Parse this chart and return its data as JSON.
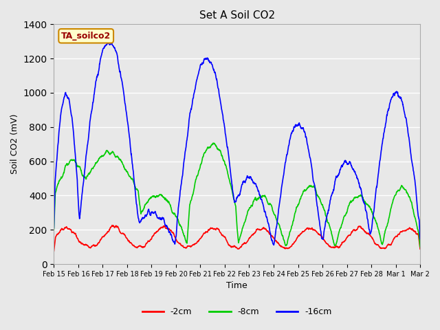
{
  "title": "Set A Soil CO2",
  "ylabel": "Soil CO2 (mV)",
  "xlabel": "Time",
  "annotation_text": "TA_soilco2",
  "annotation_bg": "#ffffcc",
  "annotation_border": "#cc8800",
  "ylim": [
    0,
    1400
  ],
  "background_color": "#e8e8e8",
  "plot_bg": "#e8e8e8",
  "xtick_labels": [
    "Feb 15",
    "Feb 16",
    "Feb 17",
    "Feb 18",
    "Feb 19",
    "Feb 20",
    "Feb 21",
    "Feb 22",
    "Feb 23",
    "Feb 24",
    "Feb 25",
    "Feb 26",
    "Feb 27",
    "Feb 28",
    "Mar 1",
    "Mar 2"
  ],
  "series": {
    "red": {
      "label": "-2cm",
      "color": "#ff0000"
    },
    "green": {
      "label": "-8cm",
      "color": "#00cc00"
    },
    "blue": {
      "label": "-16cm",
      "color": "#0000ff"
    }
  }
}
